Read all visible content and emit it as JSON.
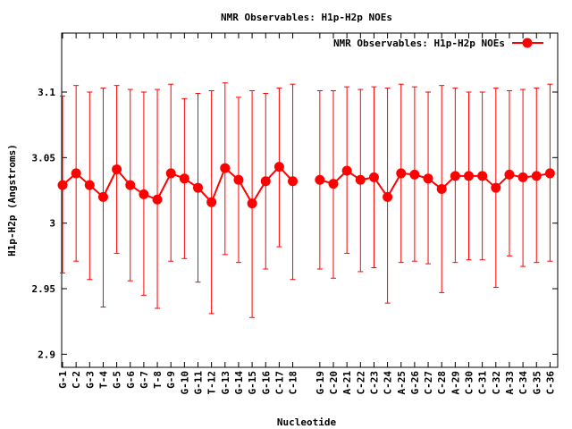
{
  "chart_data": {
    "type": "line",
    "title": "NMR Observables: H1p-H2p NOEs",
    "xlabel": "Nucleotide",
    "ylabel": "H1p-H2p (Angstroms)",
    "ylim": [
      2.89,
      3.145
    ],
    "yticks": [
      "2.9",
      "2.95",
      "3",
      "3.05",
      "3.1"
    ],
    "ytick_values": [
      2.9,
      2.95,
      3.0,
      3.05,
      3.1
    ],
    "grid": false,
    "legend_position": "top-right",
    "series": [
      {
        "name": "NMR Observables: H1p-H2p NOEs",
        "color": "#ff0000",
        "segments": [
          {
            "categories": [
              "G-1",
              "C-2",
              "G-3",
              "T-4",
              "G-5",
              "G-6",
              "G-7",
              "T-8",
              "G-9",
              "G-10",
              "G-11",
              "T-12",
              "G-13",
              "G-14",
              "G-15",
              "G-16",
              "C-17",
              "C-18"
            ],
            "values": [
              3.029,
              3.038,
              3.029,
              3.02,
              3.041,
              3.029,
              3.022,
              3.018,
              3.038,
              3.034,
              3.027,
              3.016,
              3.042,
              3.033,
              3.015,
              3.032,
              3.043,
              3.032
            ],
            "err_low": [
              2.962,
              2.971,
              2.957,
              2.936,
              2.977,
              2.956,
              2.945,
              2.935,
              2.971,
              2.973,
              2.955,
              2.931,
              2.976,
              2.97,
              2.928,
              2.965,
              2.982,
              2.957
            ],
            "err_high": [
              3.097,
              3.105,
              3.1,
              3.103,
              3.105,
              3.102,
              3.1,
              3.102,
              3.106,
              3.095,
              3.099,
              3.101,
              3.107,
              3.096,
              3.101,
              3.099,
              3.103,
              3.106
            ]
          },
          {
            "categories": [
              "G-19",
              "C-20",
              "A-21",
              "C-22",
              "C-23",
              "C-24",
              "A-25",
              "G-26",
              "C-27",
              "C-28",
              "A-29",
              "C-30",
              "C-31",
              "C-32",
              "A-33",
              "C-34",
              "G-35",
              "C-36"
            ],
            "values": [
              3.033,
              3.03,
              3.04,
              3.033,
              3.035,
              3.02,
              3.038,
              3.037,
              3.034,
              3.026,
              3.036,
              3.036,
              3.036,
              3.027,
              3.037,
              3.035,
              3.036,
              3.038
            ],
            "err_low": [
              2.965,
              2.958,
              2.977,
              2.963,
              2.966,
              2.939,
              2.97,
              2.971,
              2.969,
              2.947,
              2.97,
              2.972,
              2.972,
              2.951,
              2.975,
              2.967,
              2.97,
              2.971
            ],
            "err_high": [
              3.101,
              3.101,
              3.104,
              3.102,
              3.104,
              3.103,
              3.106,
              3.104,
              3.1,
              3.105,
              3.103,
              3.1,
              3.1,
              3.103,
              3.101,
              3.102,
              3.103,
              3.106
            ]
          }
        ]
      }
    ]
  }
}
